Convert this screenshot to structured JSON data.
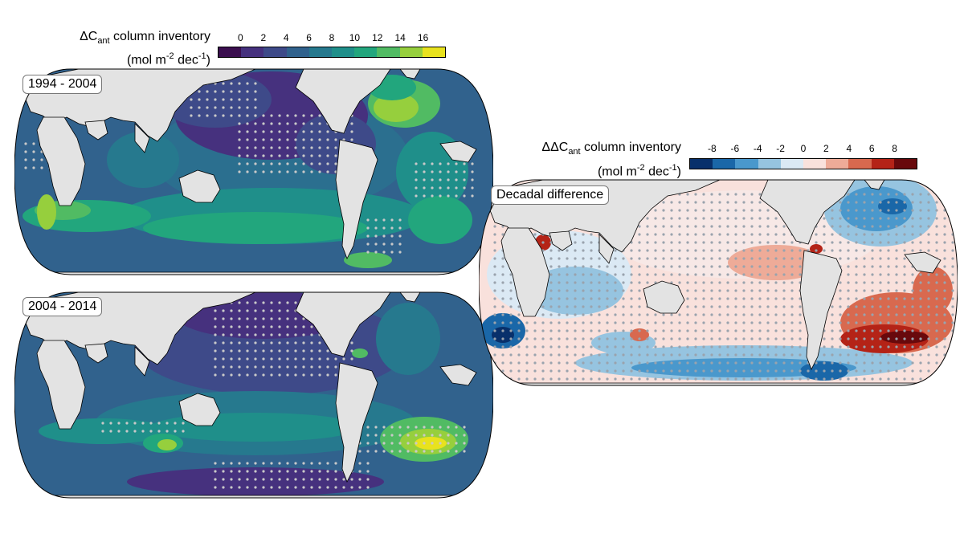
{
  "colorbar_abs": {
    "title_main": "ΔC",
    "title_sub": "ant",
    "title_rest": " column inventory",
    "unit_pre": "(mol m",
    "unit_sup1": "-2",
    "unit_mid": " dec",
    "unit_sup2": "-1",
    "unit_post": ")",
    "ticks": [
      "0",
      "2",
      "4",
      "6",
      "8",
      "10",
      "12",
      "14",
      "16"
    ],
    "colors": [
      "#3b0f4f",
      "#46317e",
      "#3e4a89",
      "#31628d",
      "#26798e",
      "#1f8f8a",
      "#22a67d",
      "#51bb63",
      "#96cf3d",
      "#e8e21e"
    ]
  },
  "colorbar_diff": {
    "title_main": "ΔΔC",
    "title_sub": "ant",
    "title_rest": " column inventory",
    "unit_pre": "(mol m",
    "unit_sup1": "-2",
    "unit_mid": " dec",
    "unit_sup2": "-1",
    "unit_post": ")",
    "ticks": [
      "-8",
      "-6",
      "-4",
      "-2",
      "0",
      "2",
      "4",
      "6",
      "8"
    ],
    "colors": [
      "#08306b",
      "#1a67a8",
      "#4a98cc",
      "#96c4e0",
      "#dbe9f4",
      "#f9e1dc",
      "#eeab98",
      "#d8694f",
      "#b42317",
      "#68090c"
    ]
  },
  "panels": {
    "p1_label": "1994 - 2004",
    "p2_label": "2004 - 2014",
    "p3_label": "Decadal difference"
  },
  "colors": {
    "land": "#e3e3e3",
    "coast": "#000000",
    "stipple": "#c9c9c9",
    "stipple_diff": "#9aa3ad"
  }
}
